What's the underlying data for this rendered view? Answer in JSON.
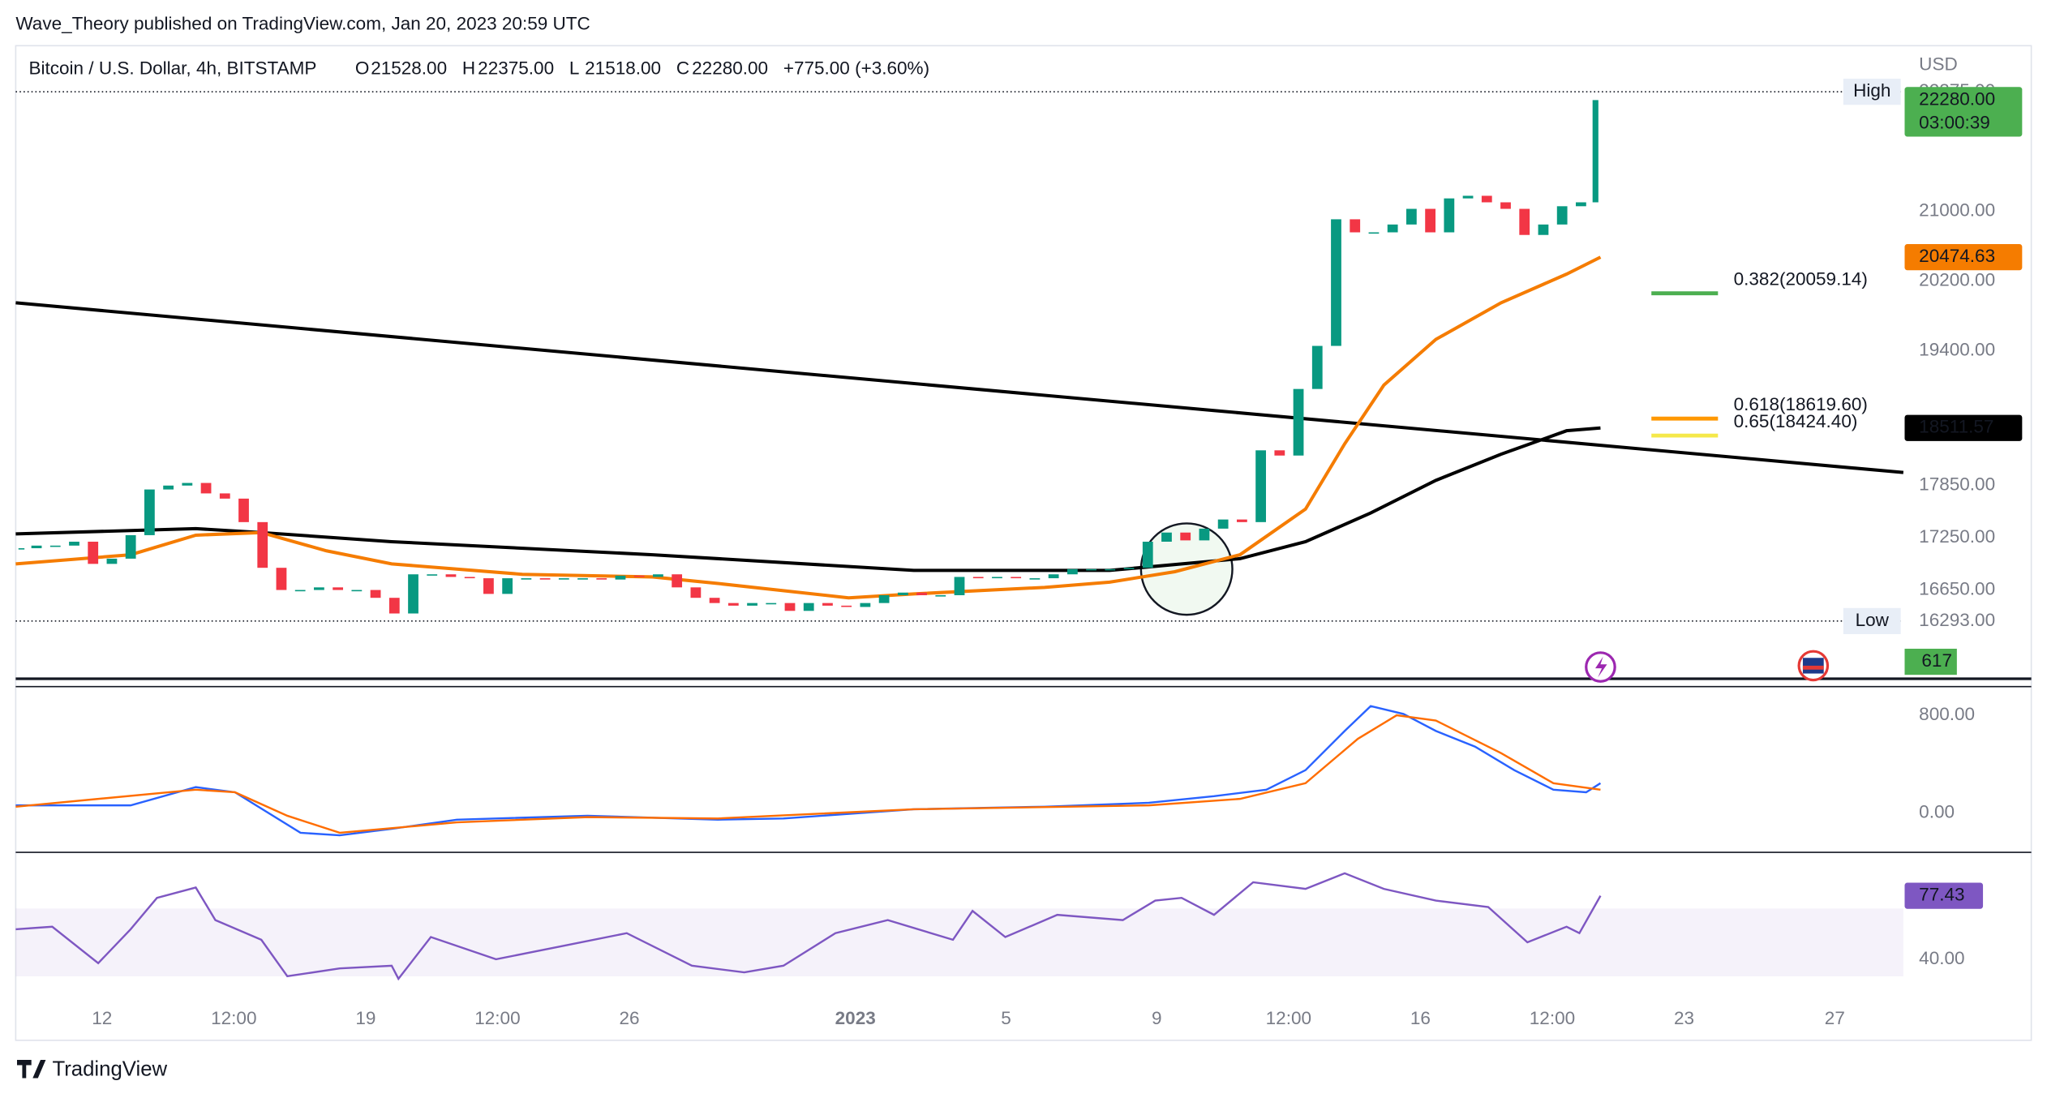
{
  "header": {
    "title": "Wave_Theory published on TradingView.com, Jan 20, 2023 20:59 UTC",
    "brand": "TradingView"
  },
  "chart_data": [
    {
      "type": "candlestick",
      "title": "Bitcoin / U.S. Dollar, 4h, BITSTAMP",
      "currency": "USD",
      "legend_items": [
        {
          "key": "O",
          "value": 21528,
          "label": "21528.00"
        },
        {
          "key": "H",
          "value": 22375,
          "label": "22375.00"
        },
        {
          "key": "L",
          "value": 21518,
          "label": "21518.00"
        },
        {
          "key": "C",
          "value": 22280,
          "label": "22280.00"
        }
      ],
      "change": "+775.00 (+3.60%)",
      "xlim": [
        8.71,
        58.82
      ],
      "xticks": [
        {
          "value": 11,
          "label": "12"
        },
        {
          "value": 14.5,
          "label": "12:00"
        },
        {
          "value": 18,
          "label": "19"
        },
        {
          "value": 21.5,
          "label": "12:00"
        },
        {
          "value": 25,
          "label": "26"
        },
        {
          "value": 31,
          "label": "2023"
        },
        {
          "value": 35,
          "label": "5"
        },
        {
          "value": 39,
          "label": "9"
        },
        {
          "value": 42.5,
          "label": "12:00"
        },
        {
          "value": 46,
          "label": "16"
        },
        {
          "value": 49.5,
          "label": "12:00"
        },
        {
          "value": 53,
          "label": "23"
        },
        {
          "value": 57,
          "label": "27"
        }
      ],
      "ylim": [
        15630,
        22905
      ],
      "yticks": [
        {
          "value": 21000,
          "label": "21000.00"
        },
        {
          "value": 20200,
          "label": "20200.00"
        },
        {
          "value": 19400,
          "label": "19400.00"
        },
        {
          "value": 17850,
          "label": "17850.00"
        },
        {
          "value": 17250,
          "label": "17250.00"
        },
        {
          "value": 16650,
          "label": "16650.00"
        }
      ],
      "up_color": "#089981",
      "down_color": "#f23645",
      "candles": {
        "x": [
          8.71,
          9,
          9.5,
          10,
          10.5,
          11,
          11.5,
          12,
          12.5,
          13,
          13.5,
          14,
          14.5,
          15,
          15.5,
          16,
          16.5,
          17,
          17.5,
          18,
          18.5,
          19,
          19.5,
          20,
          20.5,
          21,
          21.5,
          22,
          22.5,
          23,
          23.5,
          24,
          24.5,
          25,
          25.5,
          26,
          26.5,
          27,
          27.5,
          28,
          28.5,
          29,
          29.5,
          30,
          30.5,
          31,
          31.5,
          32,
          32.5,
          33,
          33.5,
          34,
          34.5,
          35,
          35.5,
          36,
          36.5,
          37,
          37.5,
          38,
          38.5,
          39,
          39.5,
          40,
          40.5,
          41,
          41.5,
          42,
          42.5,
          43,
          43.5,
          44,
          44.5,
          45,
          45.5,
          46,
          46.5,
          47,
          47.5,
          48,
          48.5,
          49,
          49.5,
          50,
          50.5,
          50.78
        ],
        "values": [
          17130,
          17130,
          17160,
          17160,
          17205,
          16950,
          17010,
          17280,
          17805,
          17850,
          17880,
          17760,
          17700,
          17430,
          16905,
          16650,
          16650,
          16680,
          16650,
          16650,
          16560,
          16380,
          16830,
          16830,
          16800,
          16785,
          16605,
          16785,
          16785,
          16770,
          16785,
          16785,
          16770,
          16815,
          16800,
          16830,
          16680,
          16560,
          16500,
          16470,
          16500,
          16500,
          16410,
          16500,
          16470,
          16455,
          16500,
          16590,
          16620,
          16590,
          16590,
          16800,
          16785,
          16800,
          16785,
          16785,
          16830,
          16890,
          16890,
          16890,
          16905,
          17205,
          17310,
          17220,
          17355,
          17460,
          17430,
          18255,
          18195,
          18960,
          19455,
          20910,
          20760,
          20760,
          20850,
          21030,
          20760,
          21150,
          21180,
          21105,
          21030,
          20730,
          20850,
          21060,
          21105,
          22280
        ]
      },
      "series": [
        {
          "color": "#000000",
          "x": [
            8.71,
            58.82
          ],
          "values": [
            19950,
            18000
          ]
        },
        {
          "color": "#000000",
          "x": [
            8.71,
            13.49,
            15.23,
            18.69,
            25.62,
            32.55,
            37.75,
            41.21,
            42.95,
            44.68,
            46.41,
            48.14,
            49.88,
            50.78
          ],
          "values": [
            17295,
            17355,
            17310,
            17205,
            17055,
            16875,
            16875,
            17010,
            17205,
            17535,
            17910,
            18210,
            18480,
            18511.57
          ]
        },
        {
          "color": "#f57c00",
          "x": [
            8.71,
            11.76,
            13.49,
            15.23,
            16.96,
            18.69,
            22.16,
            25.62,
            27.35,
            30.82,
            32.55,
            36.02,
            37.75,
            39.48,
            41.21,
            42.95,
            43.99,
            45.03,
            46.41,
            48.14,
            49.88,
            50.78
          ],
          "values": [
            16950,
            17055,
            17280,
            17310,
            17100,
            16950,
            16830,
            16800,
            16725,
            16560,
            16605,
            16680,
            16740,
            16860,
            17055,
            17580,
            18330,
            19005,
            19530,
            19950,
            20280,
            20474.63
          ]
        }
      ],
      "fib_levels": [
        {
          "label": "0.382(20059.14)",
          "value": 20059.14,
          "color": "#4caf50"
        },
        {
          "label": "0.618(18619.60)",
          "value": 18619.6,
          "color": "#ff9800"
        },
        {
          "label": "0.65(18424.40)",
          "value": 18424.4,
          "color": "#f5e84a"
        }
      ],
      "extremes": [
        {
          "name": "High",
          "value": 22375,
          "label": "22375.00"
        },
        {
          "name": "Low",
          "value": 16293,
          "label": "16293.00"
        }
      ],
      "price_labels": [
        {
          "value": 22280,
          "label": "22280.00",
          "sublabel": "03:00:39",
          "color": "#4caf50"
        },
        {
          "value": 20474.63,
          "label": "20474.63",
          "color": "#f57c00"
        },
        {
          "value": 18511.57,
          "label": "18511.57",
          "color": "#000000"
        }
      ],
      "volume_label": {
        "label": "617",
        "color": "#4caf50"
      }
    },
    {
      "type": "line",
      "ylim": [
        -288,
        992
      ],
      "yticks": [
        {
          "value": 800,
          "label": "800.00"
        },
        {
          "value": 0,
          "label": "0.00"
        }
      ],
      "series": [
        {
          "color": "#2962ff",
          "x": [
            8.71,
            11.76,
            13.49,
            14.53,
            16.27,
            17.31,
            18.69,
            20.42,
            23.89,
            27.35,
            29.09,
            32.55,
            36.02,
            38.79,
            40.52,
            41.91,
            42.95,
            43.99,
            44.68,
            45.55,
            46.41,
            47.45,
            48.49,
            49.53,
            50.4,
            50.78
          ],
          "values": [
            64,
            64,
            213,
            171,
            -160,
            -181,
            -128,
            -53,
            -21,
            -53,
            -43,
            32,
            53,
            85,
            139,
            192,
            352,
            672,
            875,
            811,
            672,
            544,
            352,
            192,
            171,
            245
          ]
        },
        {
          "color": "#ff6d00",
          "x": [
            8.71,
            13.49,
            14.53,
            15.92,
            17.31,
            20.42,
            23.89,
            27.35,
            32.55,
            38.79,
            41.21,
            42.95,
            44.34,
            45.37,
            46.41,
            48.14,
            49.53,
            50.78
          ],
          "values": [
            53,
            192,
            171,
            -21,
            -160,
            -75,
            -32,
            -43,
            32,
            64,
            117,
            245,
            608,
            800,
            757,
            491,
            245,
            192
          ]
        }
      ]
    },
    {
      "type": "line",
      "ylim": [
        13,
        101.5
      ],
      "yticks": [
        {
          "value": 40,
          "label": "40.00"
        }
      ],
      "series": [
        {
          "color": "#7e57c2",
          "x": [
            8.71,
            9.68,
            10.9,
            11.76,
            12.46,
            13.49,
            14.01,
            15.23,
            15.92,
            17.31,
            18.69,
            18.87,
            19.73,
            21.46,
            23.2,
            24.93,
            26.66,
            28.05,
            29.09,
            30.47,
            31.86,
            33.59,
            34.11,
            34.98,
            36.36,
            38.1,
            38.96,
            39.66,
            40.52,
            41.56,
            42.95,
            43.99,
            45.03,
            46.41,
            47.8,
            48.84,
            49.88,
            50.22,
            50.78
          ],
          "values": [
            57.7,
            59.2,
            37.7,
            57.7,
            76.2,
            82.3,
            63.1,
            51.5,
            30,
            34.6,
            36.2,
            28.5,
            53.1,
            40,
            47.7,
            55.4,
            36.2,
            32.3,
            36.2,
            55.4,
            63.1,
            51.5,
            68.5,
            53.1,
            66.2,
            63.1,
            74.6,
            76.2,
            66.2,
            85.4,
            81.5,
            90.7,
            81.5,
            74.6,
            70.8,
            50,
            59.2,
            55.4,
            77.43
          ]
        }
      ],
      "last_label": {
        "value": 77.43,
        "label": "77.43",
        "color": "#7e57c2"
      }
    }
  ]
}
